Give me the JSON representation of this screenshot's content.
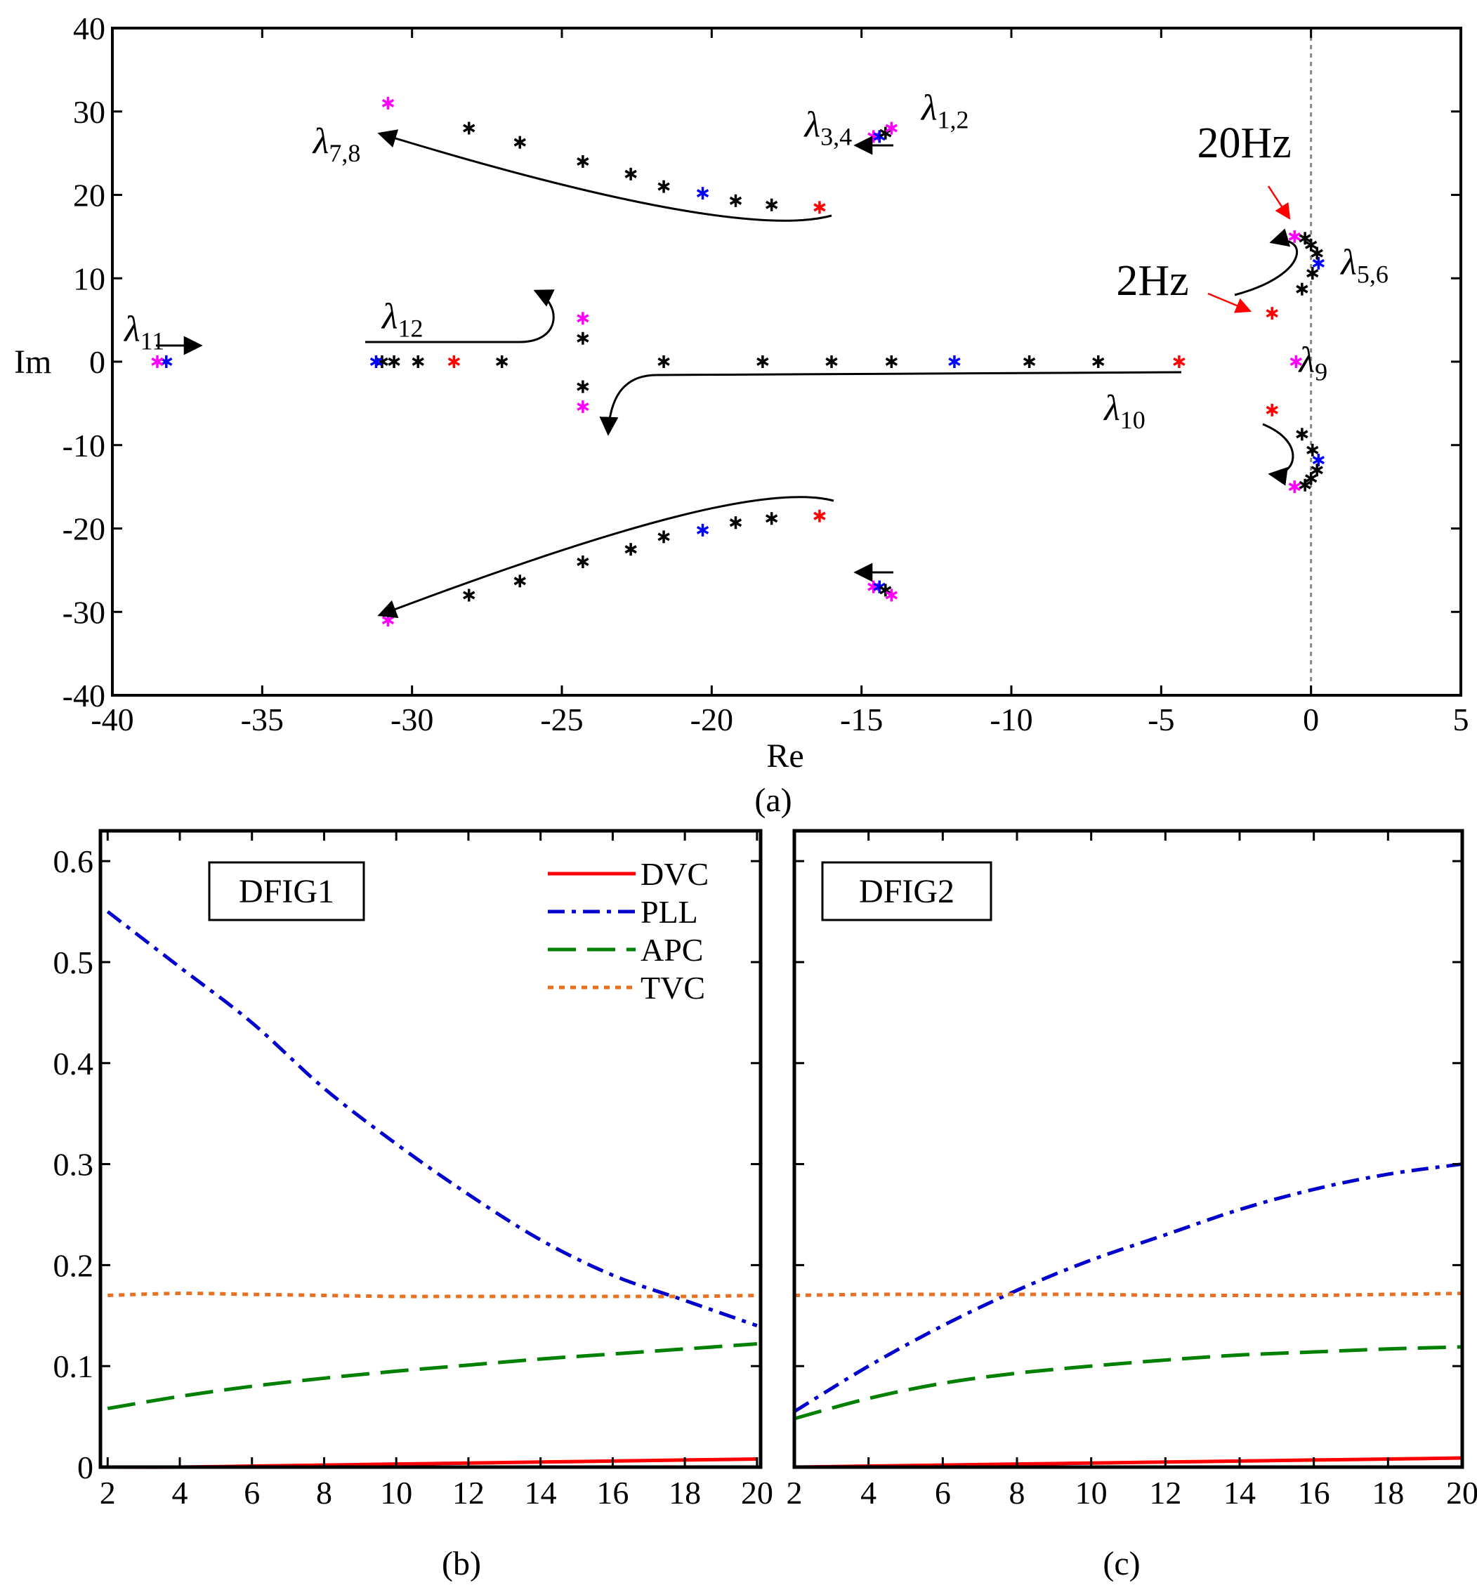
{
  "chart_data": [
    {
      "id": "a",
      "type": "scatter",
      "caption": "(a)",
      "xlabel": "Re",
      "ylabel": "Im",
      "xlim": [
        -40,
        5
      ],
      "ylim": [
        -40,
        40
      ],
      "xticks": [
        "-40",
        "-35",
        "-30",
        "-25",
        "-20",
        "-15",
        "-10",
        "-5",
        "0",
        "5"
      ],
      "yticks": [
        "40",
        "30",
        "20",
        "10",
        "0",
        "-10",
        "-20",
        "-30",
        "-40"
      ],
      "colors": {
        "start": "#ff0000",
        "mid": "#0000ff",
        "end": "#ff00ff",
        "path": "#000000"
      },
      "groups": [
        {
          "name": "lambda_7,8",
          "points": [
            [
              -16.4,
              18.5,
              "start"
            ],
            [
              -18.0,
              18.8,
              "path"
            ],
            [
              -19.2,
              19.3,
              "path"
            ],
            [
              -20.3,
              20.2,
              "mid"
            ],
            [
              -21.6,
              21.0,
              "path"
            ],
            [
              -22.7,
              22.5,
              "path"
            ],
            [
              -24.3,
              24.0,
              "path"
            ],
            [
              -26.4,
              26.3,
              "path"
            ],
            [
              -28.1,
              28.0,
              "path"
            ],
            [
              -30.8,
              31.0,
              "end"
            ],
            [
              -16.4,
              -18.5,
              "start"
            ],
            [
              -18.0,
              -18.8,
              "path"
            ],
            [
              -19.2,
              -19.3,
              "path"
            ],
            [
              -20.3,
              -20.2,
              "mid"
            ],
            [
              -21.6,
              -21.0,
              "path"
            ],
            [
              -22.7,
              -22.5,
              "path"
            ],
            [
              -24.3,
              -24.0,
              "path"
            ],
            [
              -26.4,
              -26.3,
              "path"
            ],
            [
              -28.1,
              -28.0,
              "path"
            ],
            [
              -30.8,
              -31.0,
              "end"
            ]
          ]
        },
        {
          "name": "lambda_1,2 / 3,4",
          "points": [
            [
              -14.6,
              27.0,
              "end"
            ],
            [
              -14.4,
              27.0,
              "mid"
            ],
            [
              -14.2,
              27.4,
              "path"
            ],
            [
              -14.0,
              28.0,
              "end"
            ],
            [
              -14.6,
              -27.0,
              "end"
            ],
            [
              -14.4,
              -27.0,
              "mid"
            ],
            [
              -14.2,
              -27.4,
              "path"
            ],
            [
              -14.0,
              -28.0,
              "end"
            ]
          ]
        },
        {
          "name": "lambda_5,6",
          "points": [
            [
              -1.3,
              5.8,
              "start"
            ],
            [
              -0.3,
              8.7,
              "path"
            ],
            [
              0.05,
              10.6,
              "path"
            ],
            [
              0.25,
              11.8,
              "mid"
            ],
            [
              0.2,
              13.0,
              "path"
            ],
            [
              0.0,
              14.0,
              "path"
            ],
            [
              -0.2,
              14.8,
              "path"
            ],
            [
              -0.55,
              15.0,
              "end"
            ],
            [
              -1.3,
              -5.8,
              "start"
            ],
            [
              -0.3,
              -8.7,
              "path"
            ],
            [
              0.05,
              -10.6,
              "path"
            ],
            [
              0.25,
              -11.8,
              "mid"
            ],
            [
              0.2,
              -13.0,
              "path"
            ],
            [
              0.0,
              -14.0,
              "path"
            ],
            [
              -0.2,
              -14.8,
              "path"
            ],
            [
              -0.55,
              -15.0,
              "end"
            ]
          ]
        },
        {
          "name": "lambda_9",
          "points": [
            [
              -0.5,
              0,
              "end"
            ]
          ]
        },
        {
          "name": "lambda_10",
          "points": [
            [
              -4.4,
              0,
              "start"
            ],
            [
              -7.1,
              0,
              "path"
            ],
            [
              -9.4,
              0,
              "path"
            ],
            [
              -11.9,
              0,
              "mid"
            ],
            [
              -14.0,
              0,
              "path"
            ],
            [
              -16.0,
              0,
              "path"
            ],
            [
              -18.3,
              0,
              "path"
            ],
            [
              -21.6,
              0,
              "path"
            ],
            [
              -24.3,
              2.8,
              "path"
            ],
            [
              -24.3,
              -3.0,
              "path"
            ],
            [
              -24.3,
              5.2,
              "end"
            ],
            [
              -24.3,
              -5.4,
              "end"
            ]
          ]
        },
        {
          "name": "lambda_11",
          "points": [
            [
              -38.2,
              0,
              "mid"
            ],
            [
              -38.5,
              0,
              "end"
            ]
          ]
        },
        {
          "name": "lambda_12",
          "points": [
            [
              -27.0,
              0,
              "path"
            ],
            [
              -28.6,
              0,
              "start"
            ],
            [
              -29.8,
              0,
              "path"
            ],
            [
              -30.6,
              0,
              "path"
            ],
            [
              -31.0,
              0,
              "path"
            ],
            [
              -31.2,
              0,
              "mid"
            ]
          ]
        }
      ],
      "labels": [
        {
          "base": "λ",
          "sub": "1,2",
          "x": -13.0,
          "y": 29.0
        },
        {
          "base": "λ",
          "sub": "3,4",
          "x": -16.9,
          "y": 27.0
        },
        {
          "base": "λ",
          "sub": "5,6",
          "x": 1.0,
          "y": 10.5
        },
        {
          "base": "λ",
          "sub": "7,8",
          "x": -33.3,
          "y": 25.0
        },
        {
          "base": "λ",
          "sub": "9",
          "x": -0.4,
          "y": -1.2
        },
        {
          "base": "λ",
          "sub": "10",
          "x": -6.9,
          "y": -7.0
        },
        {
          "base": "λ",
          "sub": "11",
          "x": -39.6,
          "y": 2.5
        },
        {
          "base": "λ",
          "sub": "12",
          "x": -31.0,
          "y": 4.0
        }
      ],
      "annotations": [
        {
          "text": "20Hz",
          "x": -3.8,
          "y": 24.5,
          "tx": -0.5,
          "ty": 16.0
        },
        {
          "text": "2Hz",
          "x": -6.5,
          "y": 8.0,
          "tx": -1.6,
          "ty": 5.6
        }
      ]
    },
    {
      "id": "b",
      "type": "line",
      "caption": "(b)",
      "title": "DFIG1",
      "xlim": [
        1.8,
        20.1
      ],
      "ylim": [
        0,
        0.63
      ],
      "xticks": [
        "2",
        "4",
        "6",
        "8",
        "10",
        "12",
        "14",
        "16",
        "18",
        "20"
      ],
      "yticks": [
        "0",
        "0.1",
        "0.2",
        "0.3",
        "0.4",
        "0.5",
        "0.6"
      ],
      "categories": [
        2,
        4,
        6,
        8,
        10,
        12,
        14,
        16,
        18,
        20
      ],
      "series": [
        {
          "name": "DVC",
          "color": "#ff0000",
          "dash": "",
          "values": [
            0.0,
            0.0,
            0.001,
            0.002,
            0.003,
            0.004,
            0.005,
            0.006,
            0.007,
            0.008
          ]
        },
        {
          "name": "PLL",
          "color": "#0000cc",
          "dash": "24 10 6 10",
          "values": [
            0.55,
            0.495,
            0.44,
            0.375,
            0.32,
            0.27,
            0.225,
            0.19,
            0.165,
            0.14
          ]
        },
        {
          "name": "APC",
          "color": "#008000",
          "dash": "40 16",
          "values": [
            0.058,
            0.07,
            0.08,
            0.088,
            0.095,
            0.101,
            0.107,
            0.112,
            0.117,
            0.122
          ]
        },
        {
          "name": "TVC",
          "color": "#e87020",
          "dash": "8 8",
          "values": [
            0.17,
            0.172,
            0.171,
            0.17,
            0.169,
            0.169,
            0.169,
            0.169,
            0.169,
            0.17
          ]
        }
      ]
    },
    {
      "id": "c",
      "type": "line",
      "caption": "(c)",
      "title": "DFIG2",
      "xlim": [
        2,
        20
      ],
      "ylim": [
        0,
        0.63
      ],
      "xticks": [
        "2",
        "4",
        "6",
        "8",
        "10",
        "12",
        "14",
        "16",
        "18",
        "20"
      ],
      "yticks": [
        "0",
        "0.1",
        "0.2",
        "0.3",
        "0.4",
        "0.5",
        "0.6"
      ],
      "categories": [
        2,
        4,
        6,
        8,
        10,
        12,
        14,
        16,
        18,
        20
      ],
      "series": [
        {
          "name": "DVC",
          "color": "#ff0000",
          "dash": "",
          "values": [
            0.0,
            0.001,
            0.002,
            0.003,
            0.004,
            0.005,
            0.006,
            0.007,
            0.008,
            0.009
          ]
        },
        {
          "name": "PLL",
          "color": "#0000cc",
          "dash": "24 10 6 10",
          "values": [
            0.055,
            0.1,
            0.14,
            0.175,
            0.205,
            0.23,
            0.255,
            0.275,
            0.29,
            0.3
          ]
        },
        {
          "name": "APC",
          "color": "#008000",
          "dash": "40 16",
          "values": [
            0.048,
            0.068,
            0.083,
            0.093,
            0.1,
            0.106,
            0.111,
            0.114,
            0.117,
            0.119
          ]
        },
        {
          "name": "TVC",
          "color": "#e87020",
          "dash": "8 8",
          "values": [
            0.17,
            0.171,
            0.171,
            0.171,
            0.171,
            0.17,
            0.17,
            0.17,
            0.171,
            0.172
          ]
        }
      ]
    }
  ]
}
